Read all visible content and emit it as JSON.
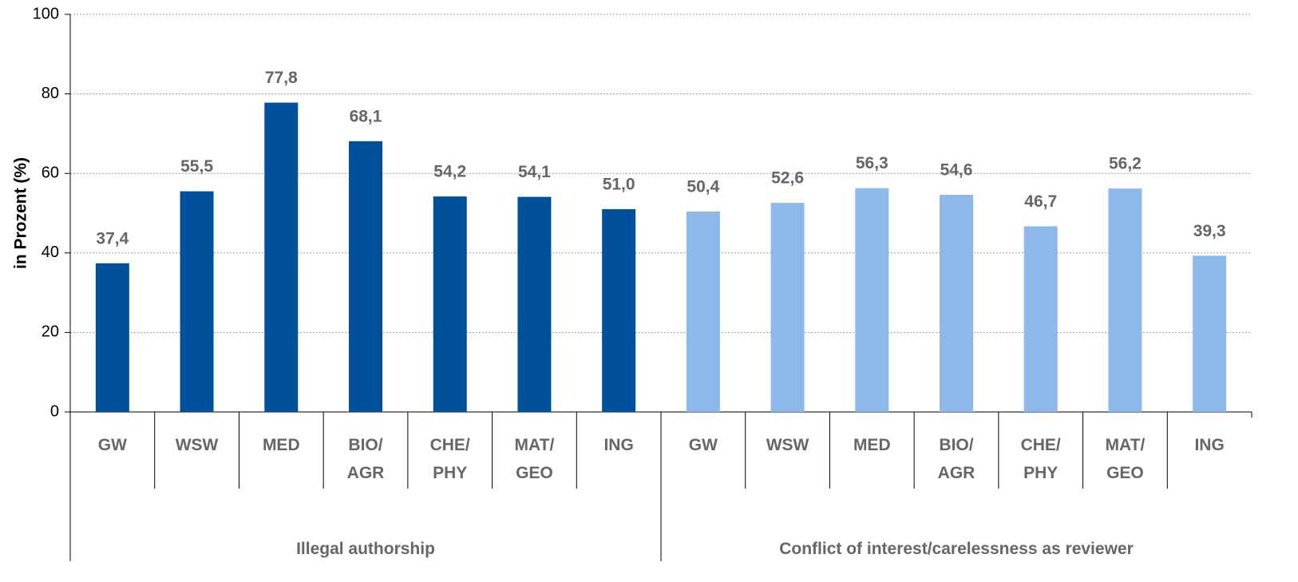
{
  "chart_data": {
    "type": "bar",
    "ylabel": "in Prozent (%)",
    "ylim": [
      0,
      100
    ],
    "yticks": [
      0,
      20,
      40,
      60,
      80,
      100
    ],
    "grid": true,
    "series": [
      {
        "name": "Illegal authorship",
        "color": "#00519b",
        "categories": [
          "GW",
          "WSW",
          "MED",
          "BIO/\nAGR",
          "CHE/\nPHY",
          "MAT/\nGEO",
          "ING"
        ],
        "values": [
          37.4,
          55.5,
          77.8,
          68.1,
          54.2,
          54.1,
          51.0
        ],
        "value_labels": [
          "37,4",
          "55,5",
          "77,8",
          "68,1",
          "54,2",
          "54,1",
          "51,0"
        ]
      },
      {
        "name": "Conflict of interest/carelessness as reviewer",
        "color": "#8cb9e9",
        "categories": [
          "GW",
          "WSW",
          "MED",
          "BIO/\nAGR",
          "CHE/\nPHY",
          "MAT/\nGEO",
          "ING"
        ],
        "values": [
          50.4,
          52.6,
          56.3,
          54.6,
          46.7,
          56.2,
          39.3
        ],
        "value_labels": [
          "50,4",
          "52,6",
          "56,3",
          "54,6",
          "46,7",
          "56,2",
          "39,3"
        ]
      }
    ]
  }
}
